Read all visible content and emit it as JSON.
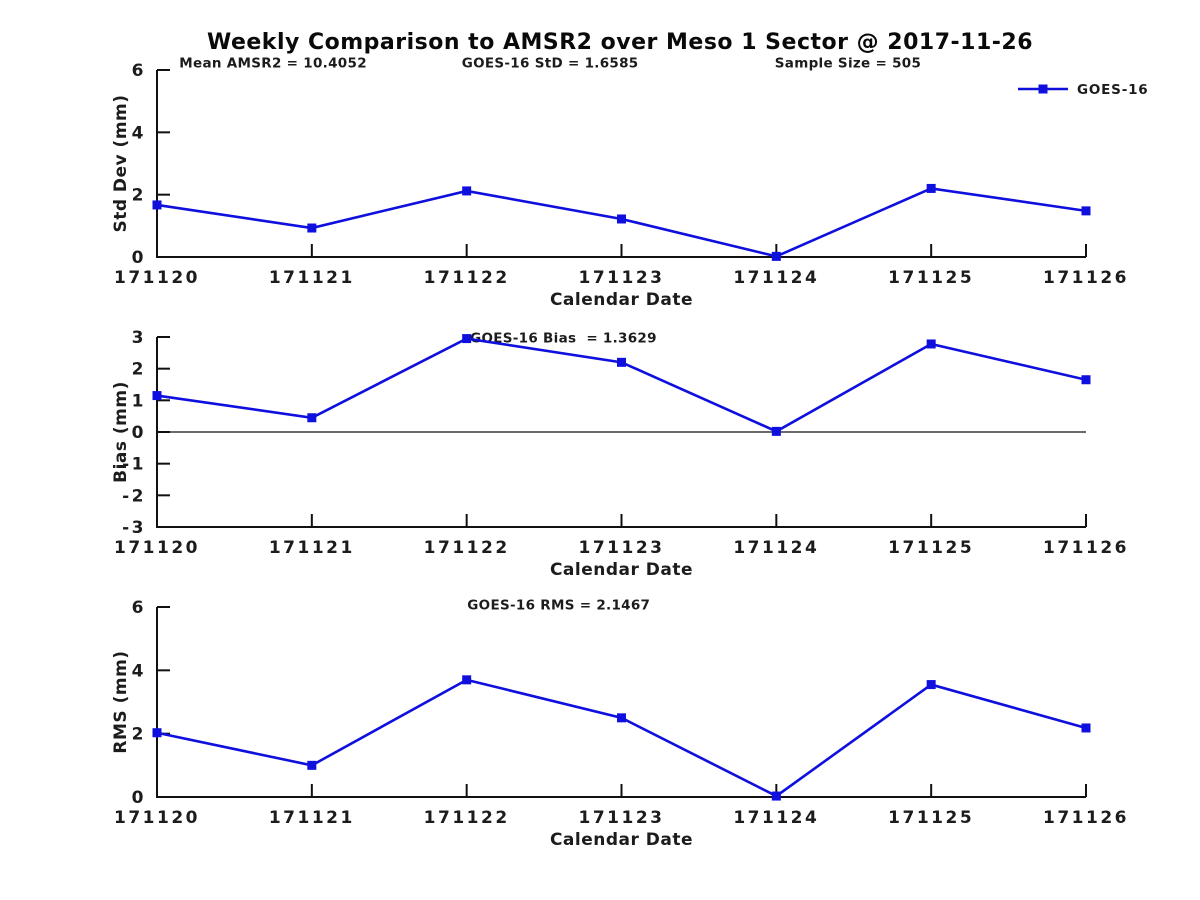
{
  "title": "Weekly Comparison to AMSR2 over Meso 1 Sector @ 2017-11-26",
  "line_color": "#0F0FDE",
  "axis_color": "#111111",
  "chart_data": {
    "type": "line",
    "categories": [
      "171120",
      "171121",
      "171122",
      "171123",
      "171124",
      "171125",
      "171126"
    ],
    "xlabel": "Calendar Date",
    "legend": {
      "label": "GOES-16",
      "position": "top-right",
      "marker": "square"
    },
    "charts": [
      {
        "name": "std-dev",
        "ylabel": "Std Dev (mm)",
        "ylim": [
          0,
          6
        ],
        "yticks": [
          0,
          2,
          4,
          6
        ],
        "zero_line": false,
        "show_legend": true,
        "annotations": [
          {
            "text": "Mean AMSR2 = 10.4052",
            "fx": 0.024,
            "py": -7
          },
          {
            "text": "GOES-16 StD = 1.6585",
            "fx": 0.328,
            "py": -7
          },
          {
            "text": "Sample Size = 505",
            "fx": 0.665,
            "py": -7
          }
        ],
        "series": [
          {
            "name": "GOES-16",
            "values": [
              1.67,
              0.93,
              2.12,
              1.22,
              0.02,
              2.2,
              1.48
            ]
          }
        ]
      },
      {
        "name": "bias",
        "ylabel": "Bias (mm)",
        "ylim": [
          -3,
          3
        ],
        "yticks": [
          -3,
          -2,
          -1,
          0,
          1,
          2,
          3
        ],
        "zero_line": true,
        "show_legend": false,
        "annotations": [
          {
            "text": "GOES-16 Bias  = 1.3629",
            "fx": 0.337,
            "py": 1
          }
        ],
        "series": [
          {
            "name": "GOES-16",
            "values": [
              1.15,
              0.45,
              2.95,
              2.2,
              0.02,
              2.78,
              1.65
            ]
          }
        ]
      },
      {
        "name": "rms",
        "ylabel": "RMS (mm)",
        "ylim": [
          0,
          6
        ],
        "yticks": [
          0,
          2,
          4,
          6
        ],
        "zero_line": false,
        "show_legend": false,
        "annotations": [
          {
            "text": "GOES-16 RMS = 2.1467",
            "fx": 0.334,
            "py": -2
          }
        ],
        "series": [
          {
            "name": "GOES-16",
            "values": [
              2.03,
              1.0,
              3.7,
              2.5,
              0.03,
              3.55,
              2.18
            ]
          }
        ]
      }
    ]
  }
}
